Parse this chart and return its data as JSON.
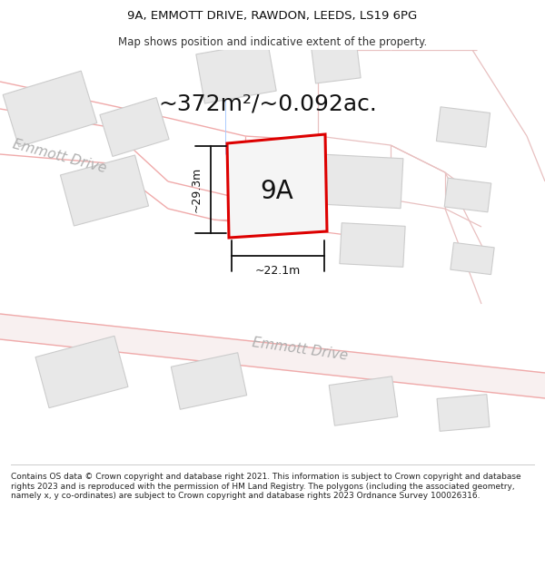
{
  "title_line1": "9A, EMMOTT DRIVE, RAWDON, LEEDS, LS19 6PG",
  "title_line2": "Map shows position and indicative extent of the property.",
  "area_text": "~372m²/~0.092ac.",
  "label_9A": "9A",
  "dim_vertical": "~29.3m",
  "dim_horizontal": "~22.1m",
  "road_label1": "Emmott Drive",
  "road_label2": "Emmott Drive",
  "footer_text": "Contains OS data © Crown copyright and database right 2021. This information is subject to Crown copyright and database rights 2023 and is reproduced with the permission of HM Land Registry. The polygons (including the associated geometry, namely x, y co-ordinates) are subject to Crown copyright and database rights 2023 Ordnance Survey 100026316.",
  "bg_color": "#ffffff",
  "map_bg": "#ffffff",
  "plot_border_color": "#dd0000",
  "road_line_color": "#f0aaaa",
  "road_line_color2": "#e8c0c0",
  "building_fill": "#e8e8e8",
  "building_outline": "#cccccc",
  "dim_line_color": "#111111",
  "text_color": "#111111",
  "road_text_color": "#b0b0b0",
  "title_fontsize": 9.5,
  "subtitle_fontsize": 8.5,
  "area_fontsize": 18,
  "label_fontsize": 20,
  "dim_fontsize": 9,
  "road_fontsize": 11,
  "footer_fontsize": 6.5
}
